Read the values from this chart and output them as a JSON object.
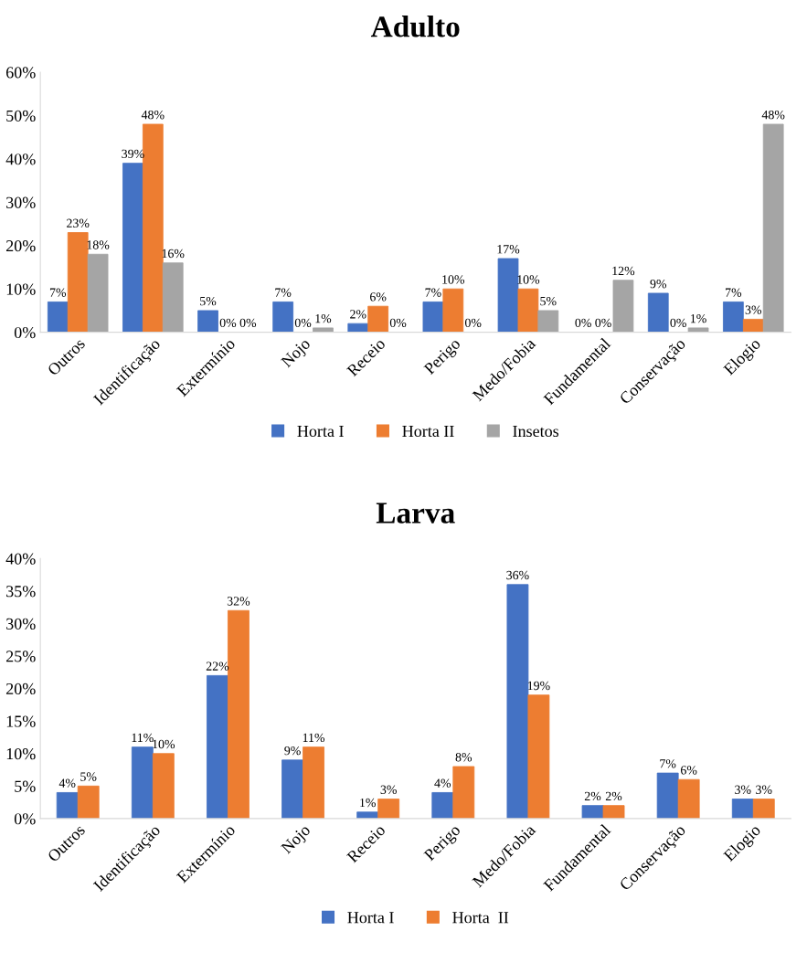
{
  "chart_data": [
    {
      "type": "bar",
      "title": "Adulto",
      "categories": [
        "Outros",
        "Identificação",
        "Extermínio",
        "Nojo",
        "Receio",
        "Perigo",
        "Medo/Fobia",
        "Fundamental",
        "Conservação",
        "Elogio"
      ],
      "series": [
        {
          "name": "Horta I",
          "color": "#4472c4",
          "values": [
            7,
            39,
            5,
            7,
            2,
            7,
            17,
            0,
            9,
            7
          ],
          "value_labels": [
            "7%",
            "39%",
            "5%",
            "7%",
            "2%",
            "7%",
            "17%",
            "0%",
            "9%",
            "7%"
          ]
        },
        {
          "name": "Horta II",
          "color": "#ed7d31",
          "values": [
            23,
            48,
            0,
            0,
            6,
            10,
            10,
            0,
            0,
            3
          ],
          "value_labels": [
            "23%",
            "48%",
            "0%",
            "0%",
            "6%",
            "10%",
            "10%",
            "0%",
            "0%",
            "3%"
          ]
        },
        {
          "name": "Insetos",
          "color": "#a5a5a5",
          "values": [
            18,
            16,
            0,
            1,
            0,
            0,
            5,
            12,
            1,
            48
          ],
          "value_labels": [
            "18%",
            "16%",
            "0%",
            "1%",
            "0%",
            "0%",
            "5%",
            "12%",
            "1%",
            "48%"
          ]
        }
      ],
      "ylim": [
        0,
        60
      ],
      "yticks": [
        {
          "value": 0,
          "label": "0%"
        },
        {
          "value": 10,
          "label": "10%"
        },
        {
          "value": 20,
          "label": "20%"
        },
        {
          "value": 30,
          "label": "30%"
        },
        {
          "value": 40,
          "label": "40%"
        },
        {
          "value": 50,
          "label": "50%"
        },
        {
          "value": 60,
          "label": "60%"
        }
      ],
      "grid": false,
      "legend": "bottom"
    },
    {
      "type": "bar",
      "title": "Larva",
      "categories": [
        "Outros",
        "Identificação",
        "Extermínio",
        "Nojo",
        "Receio",
        "Perigo",
        "Medo/Fobia",
        "Fundamental",
        "Conservação",
        "Elogio"
      ],
      "series": [
        {
          "name": "Horta I",
          "color": "#4472c4",
          "values": [
            4,
            11,
            22,
            9,
            1,
            4,
            36,
            2,
            7,
            3
          ],
          "value_labels": [
            "4%",
            "11%",
            "22%",
            "9%",
            "1%",
            "4%",
            "36%",
            "2%",
            "7%",
            "3%"
          ]
        },
        {
          "name": "Horta  II",
          "color": "#ed7d31",
          "values": [
            5,
            10,
            32,
            11,
            3,
            8,
            19,
            2,
            6,
            3
          ],
          "value_labels": [
            "5%",
            "10%",
            "32%",
            "11%",
            "3%",
            "8%",
            "19%",
            "2%",
            "6%",
            "3%"
          ]
        }
      ],
      "ylim": [
        0,
        40
      ],
      "yticks": [
        {
          "value": 0,
          "label": "0%"
        },
        {
          "value": 5,
          "label": "5%"
        },
        {
          "value": 10,
          "label": "10%"
        },
        {
          "value": 15,
          "label": "15%"
        },
        {
          "value": 20,
          "label": "20%"
        },
        {
          "value": 25,
          "label": "25%"
        },
        {
          "value": 30,
          "label": "30%"
        },
        {
          "value": 35,
          "label": "35%"
        },
        {
          "value": 40,
          "label": "40%"
        }
      ],
      "grid": false,
      "legend": "bottom"
    }
  ]
}
